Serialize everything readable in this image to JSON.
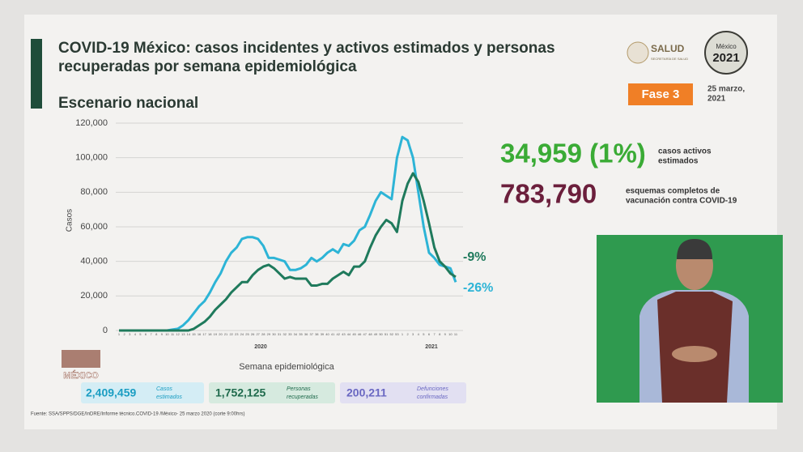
{
  "chart_data": {
    "type": "line",
    "title": "COVID-19 México: casos incidentes y activos estimados y personas recuperadas por semana epidemiológica",
    "subtitle": "Escenario nacional",
    "y_label": "Casos",
    "x_label": "Semana epidemiológica",
    "year_labels": [
      "2020",
      "2021"
    ],
    "categories": [
      1,
      2,
      3,
      4,
      5,
      6,
      7,
      8,
      9,
      10,
      11,
      12,
      13,
      14,
      15,
      16,
      17,
      18,
      19,
      20,
      21,
      22,
      23,
      24,
      25,
      26,
      27,
      28,
      29,
      30,
      31,
      32,
      33,
      34,
      35,
      36,
      37,
      38,
      39,
      40,
      41,
      42,
      43,
      44,
      45,
      46,
      47,
      48,
      49,
      50,
      51,
      52,
      53,
      1,
      2,
      3,
      4,
      5,
      6,
      7,
      8,
      9,
      10,
      11
    ],
    "series": [
      {
        "color": "#2db4d6",
        "annotation": "-26%",
        "values": [
          0,
          0,
          0,
          0,
          0,
          0,
          0,
          0,
          0,
          0,
          500,
          1000,
          3000,
          6000,
          10000,
          14000,
          17000,
          22000,
          28000,
          33000,
          40000,
          45000,
          48000,
          53000,
          54000,
          54000,
          53000,
          49000,
          42000,
          42000,
          41000,
          40000,
          35000,
          35000,
          36000,
          38000,
          42000,
          40000,
          42000,
          45000,
          47000,
          45000,
          50000,
          49000,
          52000,
          58000,
          60000,
          67000,
          75000,
          80000,
          78000,
          76000,
          100000,
          112000,
          110000,
          100000,
          80000,
          60000,
          45000,
          42000,
          38000,
          37000,
          36000,
          28000
        ]
      },
      {
        "color": "#1f7a5c",
        "annotation": "-9%",
        "values": [
          0,
          0,
          0,
          0,
          0,
          0,
          0,
          0,
          0,
          0,
          0,
          0,
          0,
          0,
          1000,
          3000,
          5000,
          8000,
          12000,
          15000,
          18000,
          22000,
          25000,
          28000,
          28000,
          32000,
          35000,
          37000,
          38000,
          36000,
          33000,
          30000,
          31000,
          30000,
          30000,
          30000,
          26000,
          26000,
          27000,
          27000,
          30000,
          32000,
          34000,
          32000,
          37000,
          37000,
          40000,
          48000,
          55000,
          60000,
          64000,
          62000,
          57000,
          75000,
          85000,
          91000,
          86000,
          75000,
          62000,
          48000,
          40000,
          37000,
          33000,
          31000
        ]
      }
    ],
    "ylim": [
      0,
      120000
    ],
    "yticks": [
      0,
      {
        "value": 20000,
        "label": "20,000"
      },
      {
        "value": 40000,
        "label": "40,000"
      },
      {
        "value": 60000,
        "label": "60,000"
      },
      {
        "value": 80000,
        "label": "80,000"
      },
      {
        "value": 100000,
        "label": "100,000"
      },
      {
        "value": 120000,
        "label": "120,000"
      }
    ],
    "grid": true
  },
  "header": {
    "agency": "SALUD",
    "agency_sub": "SECRETARÍA DE SALUD",
    "logo_top": "México",
    "logo_year": "2021",
    "phase": "Fase 3",
    "date_line1": "25 marzo,",
    "date_line2": "2021"
  },
  "stats": [
    {
      "value": "34,959 (1%)",
      "label_line1": "casos activos",
      "label_line2": "estimados"
    },
    {
      "value": "783,790",
      "label_line1": "esquemas completos de",
      "label_line2": "vacunación contra COVID-19"
    }
  ],
  "summary": [
    {
      "value": "2,409,459",
      "label_line1": "Casos",
      "label_line2": "estimados"
    },
    {
      "value": "1,752,125",
      "label_line1": "Personas",
      "label_line2": "recuperadas"
    },
    {
      "value": "200,211",
      "label_line1": "Defunciones",
      "label_line2": "confirmadas"
    }
  ],
  "side_logo": "MÉXICO",
  "footer": "Fuente: SSA/SPPS/DGE/InDRE/Informe técnico.COVID-19 /México- 25 marzo 2020 (corte 9:00hrs)"
}
